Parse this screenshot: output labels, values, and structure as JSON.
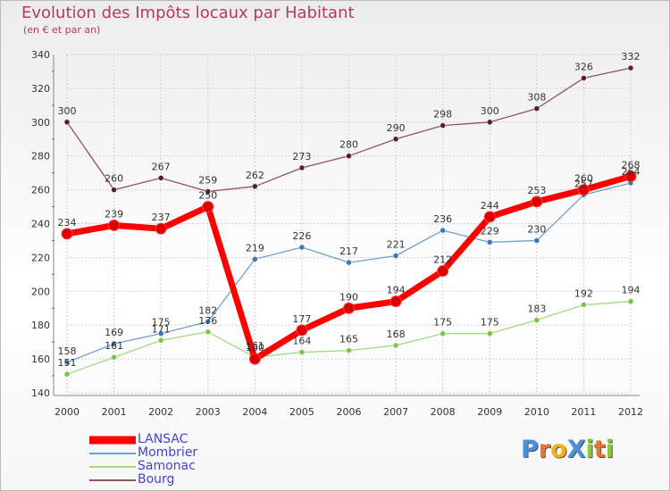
{
  "title": "Evolution des Impôts locaux par Habitant",
  "subtitle": "(en € et par an)",
  "logo": {
    "letters": [
      {
        "ch": "P",
        "color": "#4a90d9"
      },
      {
        "ch": "r",
        "color": "#e8742f"
      },
      {
        "ch": "o",
        "color": "#f0b323"
      },
      {
        "ch": "X",
        "color": "#4a90d9"
      },
      {
        "ch": "i",
        "color": "#8cc63f"
      },
      {
        "ch": "t",
        "color": "#e8742f"
      },
      {
        "ch": "i",
        "color": "#8cc63f"
      }
    ]
  },
  "chart_data": {
    "type": "line",
    "x": [
      "2000",
      "2001",
      "2002",
      "2003",
      "2004",
      "2005",
      "2006",
      "2007",
      "2008",
      "2009",
      "2010",
      "2011",
      "2012"
    ],
    "ylim": [
      140,
      340
    ],
    "yticks": [
      140,
      160,
      180,
      200,
      220,
      240,
      260,
      280,
      300,
      320,
      340
    ],
    "grid": true,
    "legend_position": "bottom-left",
    "series": [
      {
        "name": "LANSAC",
        "color": "#ff0000",
        "width": 7,
        "marker": "#dd0000",
        "values": [
          234,
          239,
          237,
          250,
          160,
          177,
          190,
          194,
          212,
          244,
          253,
          260,
          268
        ],
        "labels": [
          "234",
          "239",
          "237",
          "250",
          "160",
          "177",
          "190",
          "194",
          "212",
          "244",
          "253",
          "260",
          "268"
        ]
      },
      {
        "name": "Mombrier",
        "color": "#6fa0d0",
        "width": 1.3,
        "marker": "#3a78b8",
        "values": [
          158,
          169,
          175,
          182,
          219,
          226,
          217,
          221,
          236,
          229,
          230,
          257,
          264
        ],
        "labels": [
          "158",
          "169",
          "175",
          "182",
          "219",
          "226",
          "217",
          "221",
          "236",
          "229",
          "230",
          "257",
          "264"
        ]
      },
      {
        "name": "Samonac",
        "color": "#a3dc80",
        "width": 1.3,
        "marker": "#7cc544",
        "values": [
          151,
          161,
          171,
          176,
          161,
          164,
          165,
          168,
          175,
          175,
          183,
          192,
          194
        ],
        "labels": [
          "151",
          "161",
          "171",
          "176",
          "161",
          "164",
          "165",
          "168",
          "175",
          "175",
          "183",
          "192",
          "194"
        ]
      },
      {
        "name": "Bourg",
        "color": "#8c5560",
        "width": 1.3,
        "marker": "#5a1e28",
        "values": [
          300,
          260,
          267,
          259,
          262,
          273,
          280,
          290,
          298,
          300,
          308,
          326,
          332
        ],
        "labels": [
          "300",
          "260",
          "267",
          "259",
          "262",
          "273",
          "280",
          "290",
          "298",
          "300",
          "308",
          "326",
          "332"
        ]
      }
    ]
  }
}
